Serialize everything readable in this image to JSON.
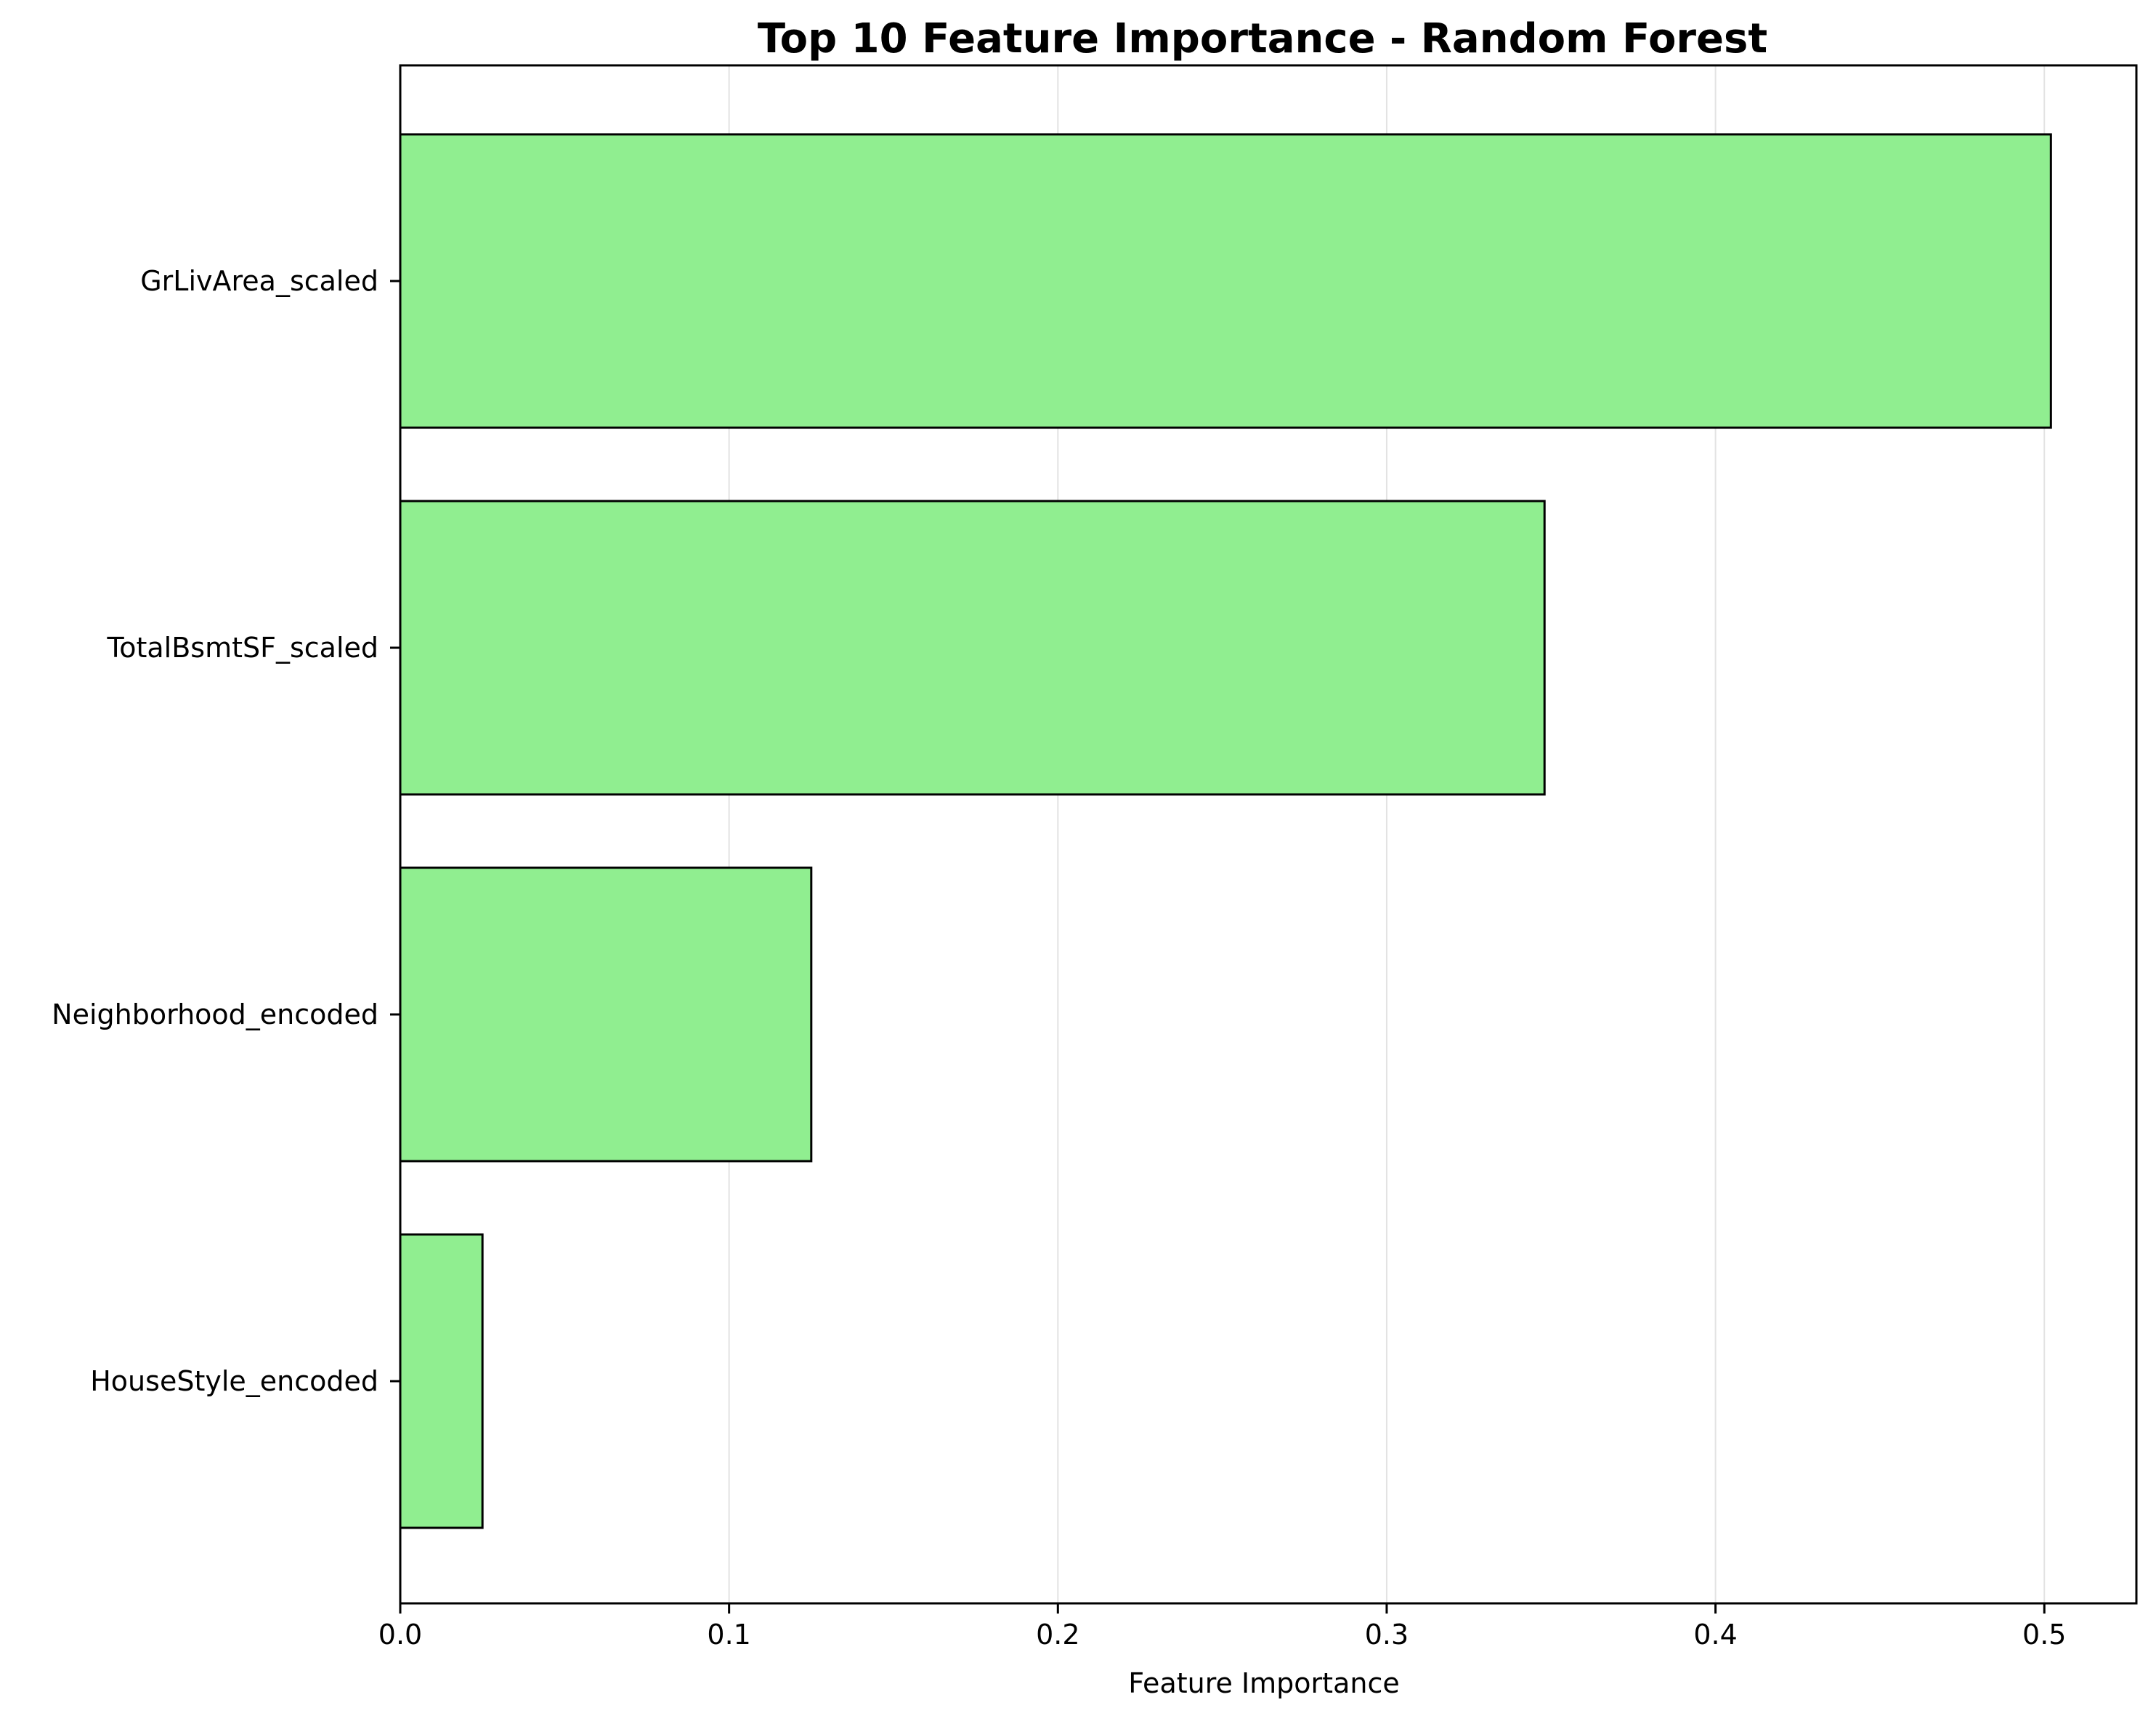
{
  "chart_data": {
    "type": "bar",
    "orientation": "horizontal",
    "title": "Top 10 Feature Importance - Random Forest",
    "xlabel": "Feature Importance",
    "ylabel": "",
    "categories": [
      "GrLivArea_scaled",
      "TotalBsmtSF_scaled",
      "Neighborhood_encoded",
      "HouseStyle_encoded"
    ],
    "values": [
      0.502,
      0.348,
      0.125,
      0.025
    ],
    "xlim": [
      0,
      0.528
    ],
    "xticks": [
      0.0,
      0.1,
      0.2,
      0.3,
      0.4,
      0.5
    ],
    "xtick_labels": [
      "0.0",
      "0.1",
      "0.2",
      "0.3",
      "0.4",
      "0.5"
    ],
    "grid": "x-axis only",
    "bar_color": "#90ee90",
    "bar_edge_color": "#000000",
    "grid_color": "#e3e3e3"
  }
}
